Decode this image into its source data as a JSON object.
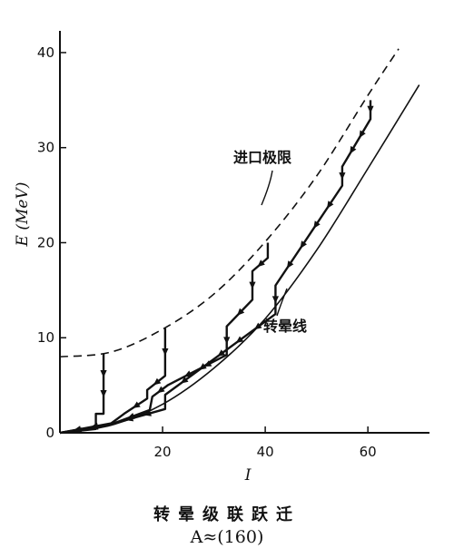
{
  "chart_data": {
    "type": "line",
    "xlabel": "I",
    "ylabel": "E (MeV)",
    "xlim": [
      0,
      72
    ],
    "ylim": [
      0,
      42
    ],
    "x_ticks": [
      20,
      40,
      60
    ],
    "y_ticks": [
      0,
      10,
      20,
      30,
      40
    ],
    "grid": false,
    "annotations": [
      {
        "text": "进口极限",
        "points_to": "dashed-entry-line"
      },
      {
        "text": "转晕线",
        "points_to": "yrast-line"
      }
    ],
    "curves": {
      "entry_limit": {
        "style": "dashed",
        "label": "进口极限",
        "points": [
          [
            0,
            8.0
          ],
          [
            10,
            8.5
          ],
          [
            20,
            10.9
          ],
          [
            30,
            14.6
          ],
          [
            40,
            20.1
          ],
          [
            50,
            27.0
          ],
          [
            60,
            35.5
          ],
          [
            66,
            40.4
          ]
        ]
      },
      "yrast": {
        "style": "solid",
        "label": "转晕线",
        "points": [
          [
            0,
            0
          ],
          [
            10,
            0.8
          ],
          [
            20,
            3.0
          ],
          [
            30,
            6.8
          ],
          [
            40,
            12.0
          ],
          [
            50,
            19.2
          ],
          [
            60,
            27.8
          ],
          [
            70,
            36.6
          ]
        ]
      }
    },
    "cascades": [
      {
        "points": [
          [
            8.5,
            8.3
          ],
          [
            8.5,
            2.0
          ],
          [
            7.0,
            2.0
          ],
          [
            7.0,
            0.4
          ],
          [
            0,
            0
          ]
        ]
      },
      {
        "points": [
          [
            20.5,
            11.0
          ],
          [
            20.5,
            6.0
          ],
          [
            17.0,
            4.5
          ],
          [
            17.0,
            3.6
          ],
          [
            12.5,
            2.0
          ],
          [
            10,
            1.0
          ],
          [
            0,
            0
          ]
        ]
      },
      {
        "points": [
          [
            40.5,
            20.0
          ],
          [
            40.5,
            18.4
          ],
          [
            37.5,
            17.0
          ],
          [
            37.5,
            14.0
          ],
          [
            32.5,
            11.2
          ],
          [
            32.5,
            8.2
          ],
          [
            21,
            5.0
          ],
          [
            18,
            3.8
          ],
          [
            17.5,
            2.4
          ],
          [
            10,
            0.9
          ],
          [
            0,
            0
          ]
        ]
      },
      {
        "points": [
          [
            60.5,
            35.0
          ],
          [
            60.5,
            33.0
          ],
          [
            55.0,
            28.0
          ],
          [
            55.0,
            26.0
          ],
          [
            42.0,
            15.5
          ],
          [
            42.0,
            12.5
          ],
          [
            20.5,
            4.0
          ],
          [
            20.5,
            2.5
          ],
          [
            10,
            0.9
          ],
          [
            0,
            0
          ]
        ]
      }
    ]
  },
  "caption": {
    "line1": "转晕级联跃迁",
    "line2": "A≈(160)"
  }
}
